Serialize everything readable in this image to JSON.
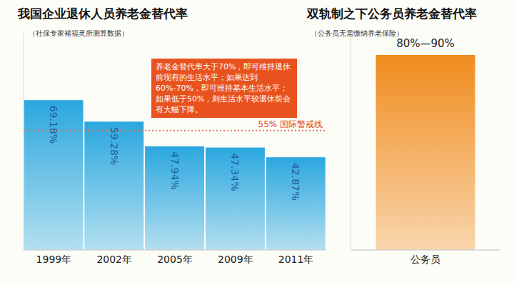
{
  "chart_data": [
    {
      "type": "bar",
      "title": "我国企业退休人员养老金替代率",
      "subtitle": "（社保专家褚福灵所测算数据）",
      "categories": [
        "1999年",
        "2002年",
        "2005年",
        "2009年",
        "2011年"
      ],
      "values": [
        69.18,
        59.28,
        47.94,
        47.34,
        42.87
      ],
      "value_labels": [
        "69.18%",
        "59.28%",
        "47.94%",
        "47.34%",
        "42.87%"
      ],
      "color": "#2aa7df",
      "ylim": [
        0,
        100
      ],
      "tick_labels": "x",
      "data_labels": true,
      "reference_line": {
        "value": 55,
        "label": "55% 国际警戒线"
      },
      "annotation": "养老金替代率大于70%，即可维持退休前现有的生活水平；如果达到60%-70%，即可维持基本生活水平；如果低于50%，则生活水平较退休前会有大幅下降。"
    },
    {
      "type": "bar",
      "title": "双轨制之下公务员养老金替代率",
      "subtitle": "（公务员无需缴纳养老保险）",
      "categories": [
        "公务员"
      ],
      "values": [
        90
      ],
      "value_labels": [
        "80%—90%"
      ],
      "color": "#f08c1e",
      "ylim": [
        0,
        100
      ],
      "tick_labels": "x",
      "data_labels": true
    }
  ]
}
